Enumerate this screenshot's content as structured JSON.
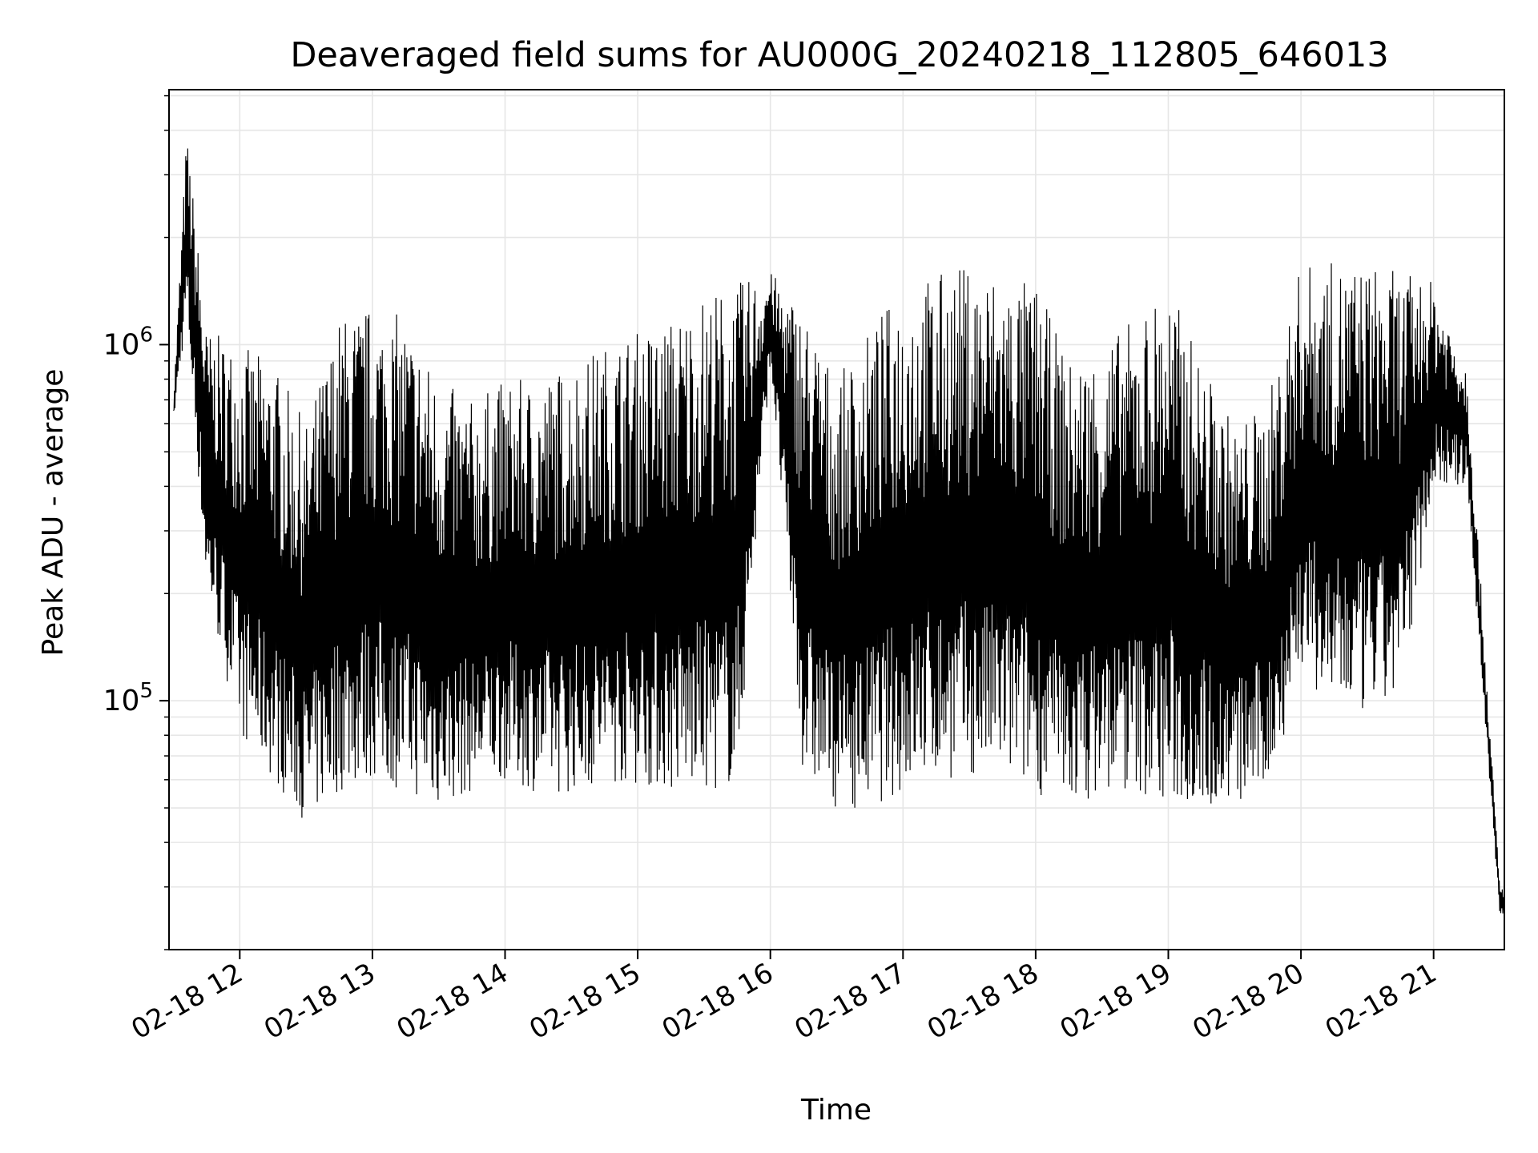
{
  "chart_data": {
    "type": "line",
    "title": "Deaveraged field sums for AU000G_20240218_112805_646013",
    "xlabel": "Time",
    "ylabel": "Peak ADU - average",
    "yscale": "log",
    "ylim": [
      20000,
      5200000
    ],
    "xlim": [
      "2024-02-18 11:28",
      "2024-02-18 21:32"
    ],
    "grid": true,
    "line_color": "#000000",
    "grid_color": "#e6e6e6",
    "x_ticks": [
      {
        "t": "2024-02-18 12:00",
        "label": "02-18 12"
      },
      {
        "t": "2024-02-18 13:00",
        "label": "02-18 13"
      },
      {
        "t": "2024-02-18 14:00",
        "label": "02-18 14"
      },
      {
        "t": "2024-02-18 15:00",
        "label": "02-18 15"
      },
      {
        "t": "2024-02-18 16:00",
        "label": "02-18 16"
      },
      {
        "t": "2024-02-18 17:00",
        "label": "02-18 17"
      },
      {
        "t": "2024-02-18 18:00",
        "label": "02-18 18"
      },
      {
        "t": "2024-02-18 19:00",
        "label": "02-18 19"
      },
      {
        "t": "2024-02-18 20:00",
        "label": "02-18 20"
      },
      {
        "t": "2024-02-18 21:00",
        "label": "02-18 21"
      }
    ],
    "y_ticks": [
      {
        "value": 100000,
        "base": "10",
        "exp": "5"
      },
      {
        "value": 1000000,
        "base": "10",
        "exp": "6"
      }
    ],
    "envelope": {
      "note": "approximate per-time-window range of the dense signal (peak / typical low)",
      "t": [
        "2024-02-18 11:30",
        "2024-02-18 11:36",
        "2024-02-18 11:45",
        "2024-02-18 12:00",
        "2024-02-18 12:15",
        "2024-02-18 12:30",
        "2024-02-18 12:45",
        "2024-02-18 13:00",
        "2024-02-18 13:15",
        "2024-02-18 13:30",
        "2024-02-18 13:45",
        "2024-02-18 14:00",
        "2024-02-18 14:15",
        "2024-02-18 14:30",
        "2024-02-18 14:45",
        "2024-02-18 15:00",
        "2024-02-18 15:15",
        "2024-02-18 15:30",
        "2024-02-18 15:45",
        "2024-02-18 16:00",
        "2024-02-18 16:15",
        "2024-02-18 16:30",
        "2024-02-18 16:45",
        "2024-02-18 17:00",
        "2024-02-18 17:15",
        "2024-02-18 17:30",
        "2024-02-18 17:45",
        "2024-02-18 18:00",
        "2024-02-18 18:15",
        "2024-02-18 18:30",
        "2024-02-18 18:45",
        "2024-02-18 19:00",
        "2024-02-18 19:15",
        "2024-02-18 19:30",
        "2024-02-18 19:45",
        "2024-02-18 20:00",
        "2024-02-18 20:15",
        "2024-02-18 20:30",
        "2024-02-18 20:45",
        "2024-02-18 21:00",
        "2024-02-18 21:15",
        "2024-02-18 21:30"
      ],
      "high": [
        700000,
        4000000,
        1100000,
        1000000,
        900000,
        600000,
        1200000,
        1300000,
        1200000,
        800000,
        700000,
        800000,
        800000,
        900000,
        1000000,
        1100000,
        1200000,
        1400000,
        1500000,
        1600000,
        1300000,
        800000,
        1100000,
        1500000,
        1600000,
        1700000,
        1600000,
        1500000,
        900000,
        1000000,
        1200000,
        1500000,
        900000,
        600000,
        700000,
        1700000,
        1700000,
        1700000,
        1600000,
        1500000,
        900000,
        30000
      ],
      "low": [
        600000,
        1200000,
        200000,
        80000,
        60000,
        45000,
        55000,
        60000,
        55000,
        50000,
        55000,
        60000,
        55000,
        55000,
        58000,
        58000,
        55000,
        55000,
        58000,
        900000,
        60000,
        50000,
        50000,
        55000,
        60000,
        60000,
        60000,
        55000,
        50000,
        55000,
        55000,
        50000,
        50000,
        50000,
        55000,
        120000,
        90000,
        90000,
        100000,
        400000,
        400000,
        25000
      ]
    }
  }
}
